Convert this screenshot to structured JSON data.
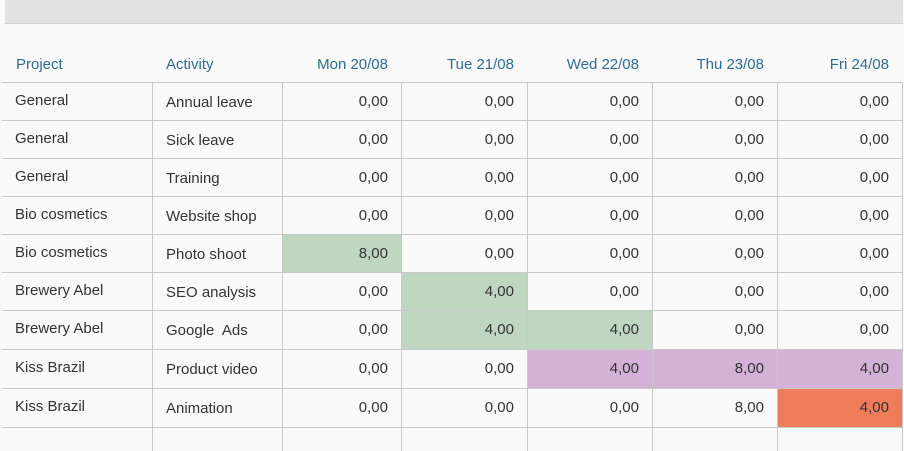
{
  "columns": {
    "project": "Project",
    "activity": "Activity",
    "days": [
      "Mon 20/08",
      "Tue 21/08",
      "Wed 22/08",
      "Thu 23/08",
      "Fri 24/08"
    ]
  },
  "rows": [
    {
      "project": "General",
      "activity": "Annual leave",
      "values": [
        "0,00",
        "0,00",
        "0,00",
        "0,00",
        "0,00"
      ],
      "colors": [
        "",
        "",
        "",
        "",
        ""
      ]
    },
    {
      "project": "General",
      "activity": "Sick leave",
      "values": [
        "0,00",
        "0,00",
        "0,00",
        "0,00",
        "0,00"
      ],
      "colors": [
        "",
        "",
        "",
        "",
        ""
      ]
    },
    {
      "project": "General",
      "activity": "Training",
      "values": [
        "0,00",
        "0,00",
        "0,00",
        "0,00",
        "0,00"
      ],
      "colors": [
        "",
        "",
        "",
        "",
        ""
      ]
    },
    {
      "project": "Bio cosmetics",
      "activity": "Website shop",
      "values": [
        "0,00",
        "0,00",
        "0,00",
        "0,00",
        "0,00"
      ],
      "colors": [
        "",
        "",
        "",
        "",
        ""
      ]
    },
    {
      "project": "Bio cosmetics",
      "activity": "Photo shoot",
      "values": [
        "8,00",
        "0,00",
        "0,00",
        "0,00",
        "0,00"
      ],
      "colors": [
        "#bfd6c1",
        "",
        "",
        "",
        ""
      ]
    },
    {
      "project": "Brewery Abel",
      "activity": "SEO analysis",
      "values": [
        "0,00",
        "4,00",
        "0,00",
        "0,00",
        "0,00"
      ],
      "colors": [
        "",
        "#bfd6c1",
        "",
        "",
        ""
      ]
    },
    {
      "project": "Brewery Abel",
      "activity": "Google  Ads",
      "values": [
        "0,00",
        "4,00",
        "4,00",
        "0,00",
        "0,00"
      ],
      "colors": [
        "",
        "#bfd6c1",
        "#bfd6c1",
        "",
        ""
      ]
    },
    {
      "project": "Kiss Brazil",
      "activity": "Product video",
      "values": [
        "0,00",
        "0,00",
        "4,00",
        "8,00",
        "4,00"
      ],
      "colors": [
        "",
        "",
        "#d4b1d6",
        "#d4b1d6",
        "#d4b1d6"
      ]
    },
    {
      "project": "Kiss Brazil",
      "activity": "Animation",
      "values": [
        "0,00",
        "0,00",
        "0,00",
        "8,00",
        "4,00"
      ],
      "colors": [
        "",
        "",
        "",
        "",
        "#ef7c5a"
      ]
    }
  ],
  "colors": {
    "header_text": "#2a6d9c",
    "green_highlight": "#bfd6c1",
    "purple_highlight": "#d4b1d6",
    "orange_highlight": "#ef7c5a"
  }
}
